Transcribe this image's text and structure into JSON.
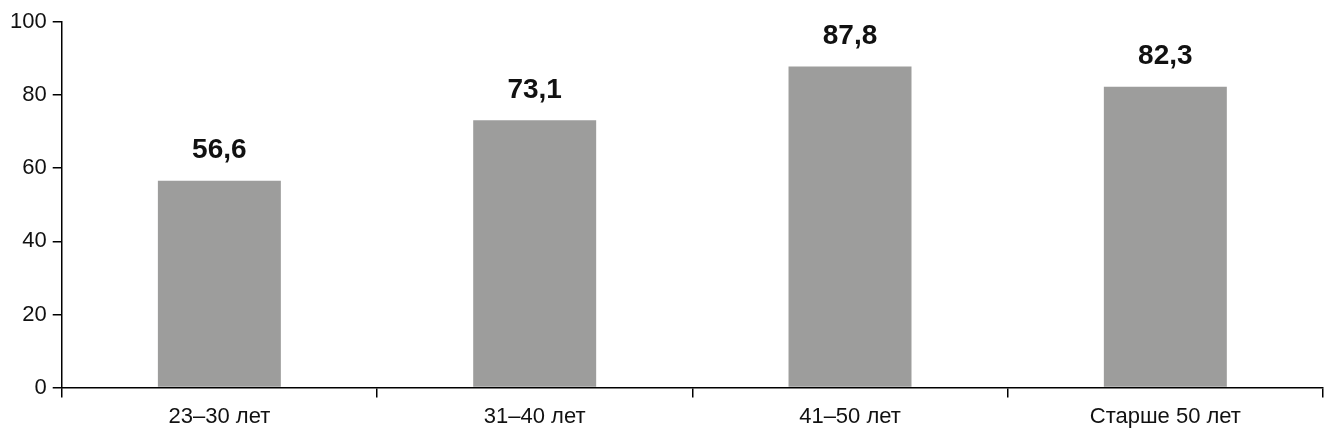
{
  "chart_data": {
    "type": "bar",
    "categories": [
      "23–30 лет",
      "31–40 лет",
      "41–50 лет",
      "Старше 50 лет"
    ],
    "values": [
      56.6,
      73.1,
      87.8,
      82.3
    ],
    "value_labels": [
      "56,6",
      "73,1",
      "87,8",
      "82,3"
    ],
    "color": "#9d9d9c",
    "ylim": [
      0,
      100
    ],
    "yticks": [
      0,
      20,
      40,
      60,
      80,
      100
    ]
  }
}
